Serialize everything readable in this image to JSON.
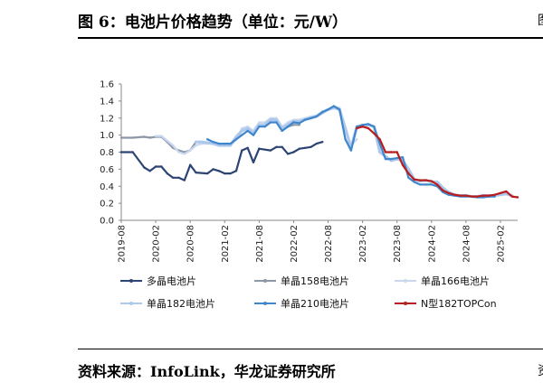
{
  "figure_title": "图 6：电池片价格趋势（单位：元/W）",
  "source_note": "资料来源：InfoLink，华龙证券研究所",
  "edge_glyphs": {
    "top": "图",
    "bottom": "资"
  },
  "colors": {
    "dbz": "#2c4474",
    "s158": "#8c97a8",
    "s166": "#c8d8ee",
    "s182": "#aec8ec",
    "s210": "#3f86cc",
    "ntype": "#b81d1d"
  },
  "chart_data": {
    "type": "line",
    "title": "",
    "xlabel": "",
    "ylabel": "",
    "ylim": [
      0,
      1.6
    ],
    "yticks": [
      "0.0",
      "0.2",
      "0.4",
      "0.6",
      "0.8",
      "1.0",
      "1.2",
      "1.4",
      "1.6"
    ],
    "xlim": [
      "2019-08",
      "2025-05"
    ],
    "xticks": [
      "2019-08",
      "2020-02",
      "2020-08",
      "2021-02",
      "2021-08",
      "2022-02",
      "2022-08",
      "2023-02",
      "2023-08",
      "2024-02",
      "2024-08",
      "2025-02"
    ],
    "legend_position": "bottom",
    "series": [
      {
        "key": "dbz",
        "name": "多晶电池片",
        "x": [
          "2019-08",
          "2019-10",
          "2019-12",
          "2020-01",
          "2020-02",
          "2020-03",
          "2020-04",
          "2020-05",
          "2020-06",
          "2020-07",
          "2020-08",
          "2020-09",
          "2020-11",
          "2020-12",
          "2021-01",
          "2021-02",
          "2021-03",
          "2021-04",
          "2021-05",
          "2021-06",
          "2021-07",
          "2021-08",
          "2021-10",
          "2021-11",
          "2021-12",
          "2022-01",
          "2022-02",
          "2022-03",
          "2022-04",
          "2022-05",
          "2022-06",
          "2022-07"
        ],
        "values": [
          0.8,
          0.8,
          0.62,
          0.58,
          0.63,
          0.63,
          0.55,
          0.5,
          0.5,
          0.47,
          0.65,
          0.56,
          0.55,
          0.6,
          0.58,
          0.55,
          0.55,
          0.58,
          0.82,
          0.85,
          0.68,
          0.84,
          0.82,
          0.86,
          0.86,
          0.78,
          0.8,
          0.84,
          0.85,
          0.86,
          0.9,
          0.92
        ]
      },
      {
        "key": "s158",
        "name": "单晶158电池片",
        "x": [
          "2019-08",
          "2019-10",
          "2019-12",
          "2020-01",
          "2020-02",
          "2020-03",
          "2020-04",
          "2020-05",
          "2020-06",
          "2020-07",
          "2020-08",
          "2020-09",
          "2020-10",
          "2020-12",
          "2021-01",
          "2021-02",
          "2021-03",
          "2021-04",
          "2021-05",
          "2021-06",
          "2021-07",
          "2021-08",
          "2021-09",
          "2021-10",
          "2021-11",
          "2021-12",
          "2022-01",
          "2022-02",
          "2022-03"
        ],
        "values": [
          0.97,
          0.97,
          0.98,
          0.97,
          0.98,
          0.98,
          0.92,
          0.85,
          0.82,
          0.8,
          0.82,
          0.92,
          0.92,
          0.9,
          0.88,
          0.88,
          0.88,
          0.95,
          1.05,
          1.08,
          1.0,
          1.12,
          1.1,
          1.18,
          1.18,
          1.05,
          1.1,
          1.12,
          1.12
        ]
      },
      {
        "key": "s166",
        "name": "单晶166电池片",
        "x": [
          "2020-02",
          "2020-03",
          "2020-05",
          "2020-06",
          "2020-07",
          "2020-08",
          "2020-09",
          "2020-10",
          "2020-12",
          "2021-01",
          "2021-02",
          "2021-03",
          "2021-04",
          "2021-05",
          "2021-06",
          "2021-07",
          "2021-08",
          "2021-09",
          "2021-10",
          "2021-11",
          "2021-12",
          "2022-01",
          "2022-02",
          "2022-03",
          "2022-04",
          "2022-05",
          "2022-06",
          "2022-07",
          "2022-08",
          "2022-09",
          "2022-10",
          "2022-11",
          "2022-12",
          "2023-01"
        ],
        "values": [
          0.99,
          0.99,
          0.88,
          0.8,
          0.78,
          0.82,
          0.88,
          0.9,
          0.9,
          0.9,
          0.88,
          0.88,
          0.95,
          1.08,
          1.1,
          1.05,
          1.15,
          1.15,
          1.2,
          1.2,
          1.1,
          1.15,
          1.18,
          1.18,
          1.2,
          1.22,
          1.23,
          1.28,
          1.3,
          1.33,
          1.32,
          1.05,
          0.88,
          0.95
        ]
      },
      {
        "key": "s182",
        "name": "单晶182电池片",
        "x": [
          "2020-09",
          "2020-10",
          "2020-12",
          "2021-01",
          "2021-02",
          "2021-03",
          "2021-04",
          "2021-05",
          "2021-06",
          "2021-07",
          "2021-08",
          "2021-09",
          "2021-10",
          "2021-11",
          "2021-12",
          "2022-01",
          "2022-02",
          "2022-03",
          "2022-04",
          "2022-05",
          "2022-06",
          "2022-07",
          "2022-08",
          "2022-09",
          "2022-10",
          "2022-11",
          "2022-12",
          "2023-01",
          "2023-02",
          "2023-03",
          "2023-04",
          "2023-05",
          "2023-06",
          "2023-07",
          "2023-08",
          "2023-09",
          "2023-10",
          "2023-11",
          "2023-12",
          "2024-01",
          "2024-02",
          "2024-03",
          "2024-04",
          "2024-05",
          "2024-06",
          "2024-07",
          "2024-08",
          "2024-09",
          "2024-10",
          "2024-11",
          "2024-12",
          "2025-01",
          "2025-02",
          "2025-03",
          "2025-04"
        ],
        "values": [
          0.92,
          0.92,
          0.9,
          0.88,
          0.88,
          0.88,
          0.98,
          1.05,
          1.08,
          1.02,
          1.12,
          1.12,
          1.18,
          1.18,
          1.08,
          1.12,
          1.16,
          1.16,
          1.18,
          1.2,
          1.22,
          1.26,
          1.3,
          1.32,
          1.3,
          1.08,
          0.85,
          1.1,
          1.1,
          1.12,
          1.1,
          0.8,
          0.75,
          0.7,
          0.72,
          0.7,
          0.6,
          0.48,
          0.46,
          0.47,
          0.45,
          0.45,
          0.38,
          0.33,
          0.3,
          0.29,
          0.29,
          0.28,
          0.28,
          0.29,
          0.29,
          0.29,
          0.3,
          0.31,
          0.29
        ]
      },
      {
        "key": "s210",
        "name": "单晶210电池片",
        "x": [
          "2020-11",
          "2020-12",
          "2021-01",
          "2021-02",
          "2021-03",
          "2021-04",
          "2021-05",
          "2021-06",
          "2021-07",
          "2021-08",
          "2021-09",
          "2021-10",
          "2021-11",
          "2021-12",
          "2022-01",
          "2022-02",
          "2022-03",
          "2022-04",
          "2022-05",
          "2022-06",
          "2022-07",
          "2022-08",
          "2022-09",
          "2022-10",
          "2022-11",
          "2022-12",
          "2023-01",
          "2023-02",
          "2023-03",
          "2023-04",
          "2023-05",
          "2023-06",
          "2023-07",
          "2023-08",
          "2023-09",
          "2023-10",
          "2023-11",
          "2023-12",
          "2024-01",
          "2024-02",
          "2024-03",
          "2024-04",
          "2024-05",
          "2024-06",
          "2024-07",
          "2024-08",
          "2024-09",
          "2024-10",
          "2024-11",
          "2024-12",
          "2025-01"
        ],
        "values": [
          0.95,
          0.92,
          0.9,
          0.9,
          0.9,
          0.95,
          1.0,
          1.05,
          1.0,
          1.1,
          1.1,
          1.15,
          1.15,
          1.05,
          1.1,
          1.15,
          1.14,
          1.18,
          1.2,
          1.22,
          1.27,
          1.3,
          1.34,
          1.3,
          0.95,
          0.82,
          1.1,
          1.12,
          1.13,
          1.1,
          0.9,
          0.72,
          0.72,
          0.73,
          0.74,
          0.5,
          0.45,
          0.42,
          0.42,
          0.42,
          0.4,
          0.33,
          0.3,
          0.29,
          0.28,
          0.28,
          0.28,
          0.27,
          0.27,
          0.28,
          0.28
        ]
      },
      {
        "key": "ntype",
        "name": "N型182TOPCon",
        "x": [
          "2023-01",
          "2023-02",
          "2023-03",
          "2023-04",
          "2023-05",
          "2023-06",
          "2023-07",
          "2023-08",
          "2023-09",
          "2023-10",
          "2023-11",
          "2023-12",
          "2024-01",
          "2024-02",
          "2024-03",
          "2024-04",
          "2024-05",
          "2024-06",
          "2024-07",
          "2024-08",
          "2024-09",
          "2024-10",
          "2024-11",
          "2024-12",
          "2025-01",
          "2025-02",
          "2025-03",
          "2025-04",
          "2025-05"
        ],
        "values": [
          1.08,
          1.1,
          1.08,
          1.02,
          0.95,
          0.8,
          0.8,
          0.8,
          0.65,
          0.55,
          0.48,
          0.47,
          0.47,
          0.46,
          0.42,
          0.35,
          0.32,
          0.3,
          0.29,
          0.29,
          0.28,
          0.28,
          0.29,
          0.29,
          0.3,
          0.32,
          0.34,
          0.28,
          0.27
        ]
      }
    ]
  }
}
